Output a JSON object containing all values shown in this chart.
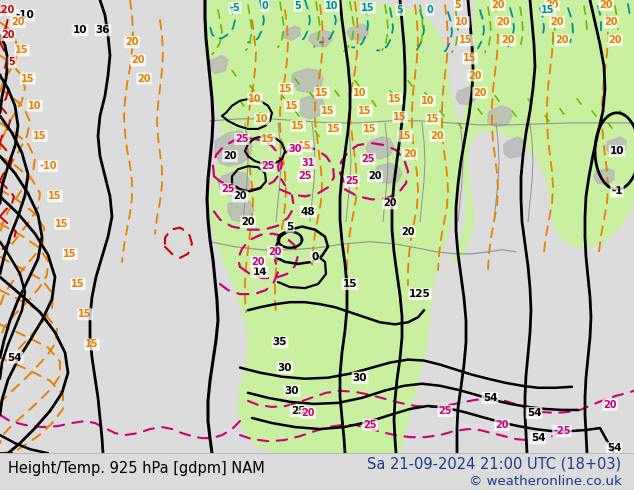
{
  "title_left": "Height/Temp. 925 hPa [gdpm] NAM",
  "title_right": "Sa 21-09-2024 21:00 UTC (18+03)",
  "copyright": "© weatheronline.co.uk",
  "bg_color": "#dcdcdc",
  "green_light": "#c8f0a0",
  "gray_terrain": "#b8b8b8",
  "white": "#ffffff",
  "title_left_color": "#000000",
  "title_right_color": "#1a3a8c",
  "copyright_color": "#1a3a8c",
  "orange": "#e88000",
  "magenta": "#cc007a",
  "red": "#cc0000",
  "cyan": "#009090",
  "ygreen": "#70b800",
  "black": "#000000",
  "font_size_title": 10.5,
  "font_size_copy": 9.5
}
